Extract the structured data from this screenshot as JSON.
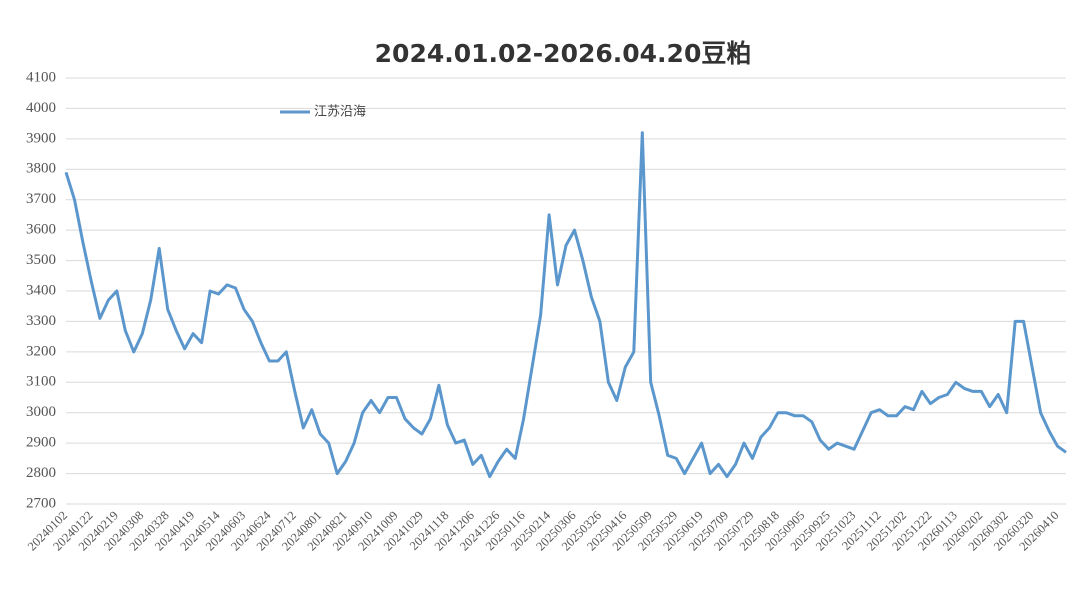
{
  "chart_data": {
    "type": "line",
    "title": "2024.01.02-2026.04.20豆粕",
    "categories": [
      "20240102",
      null,
      null,
      "20240122",
      null,
      null,
      "20240219",
      null,
      null,
      "20240308",
      null,
      null,
      "20240328",
      null,
      null,
      "20240419",
      null,
      null,
      "20240514",
      null,
      null,
      "20240603",
      null,
      null,
      "20240624",
      null,
      null,
      "20240712",
      null,
      null,
      "20240801",
      null,
      null,
      "20240821",
      null,
      null,
      "20240910",
      null,
      null,
      "20241009",
      null,
      null,
      "20241029",
      null,
      null,
      "20241118",
      null,
      null,
      "20241206",
      null,
      null,
      "20241226",
      null,
      null,
      "20250116",
      null,
      null,
      "20250214",
      null,
      null,
      "20250306",
      null,
      null,
      "20250326",
      null,
      null,
      "20250416",
      null,
      null,
      "20250509",
      null,
      null,
      "20250529",
      null,
      null,
      "20250619",
      null,
      null,
      "20250709",
      null,
      null,
      "20250729",
      null,
      null,
      "20250818",
      null,
      null,
      "20250905",
      null,
      null,
      "20250925",
      null,
      null,
      "20251023",
      null,
      null,
      "20251112",
      null,
      null,
      "20251202",
      null,
      null,
      "20251222",
      null,
      null,
      "20260113",
      null,
      null,
      "20260202",
      null,
      null,
      "20260302",
      null,
      null,
      "20260320",
      null,
      null,
      "20260410",
      null
    ],
    "series": [
      {
        "name": "江苏沿海",
        "color": "#5b97cc",
        "values": [
          3790,
          3700,
          3560,
          3430,
          3310,
          3370,
          3400,
          3270,
          3200,
          3260,
          3370,
          3540,
          3340,
          3270,
          3210,
          3260,
          3230,
          3400,
          3390,
          3420,
          3410,
          3340,
          3300,
          3230,
          3170,
          3170,
          3200,
          3070,
          2950,
          3010,
          2930,
          2900,
          2800,
          2840,
          2900,
          3000,
          3040,
          3000,
          3050,
          3050,
          2980,
          2950,
          2930,
          2980,
          3090,
          2960,
          2900,
          2910,
          2830,
          2860,
          2790,
          2840,
          2880,
          2850,
          2980,
          3150,
          3320,
          3650,
          3420,
          3550,
          3600,
          3500,
          3380,
          3300,
          3100,
          3040,
          3150,
          3200,
          3920,
          3100,
          2990,
          2860,
          2850,
          2800,
          2850,
          2900,
          2800,
          2830,
          2790,
          2830,
          2900,
          2850,
          2920,
          2950,
          3000,
          3000,
          2990,
          2990,
          2970,
          2910,
          2880,
          2900,
          2890,
          2880,
          2940,
          3000,
          3010,
          2990,
          2990,
          3020,
          3010,
          3070,
          3030,
          3050,
          3060,
          3100,
          3080,
          3070,
          3070,
          3020,
          3060,
          3000,
          3300,
          3300,
          3150,
          3000,
          2940,
          2890,
          2870
        ]
      }
    ],
    "ylim": [
      2700,
      4100
    ],
    "yticks": [
      2700,
      2800,
      2900,
      3000,
      3100,
      3200,
      3300,
      3400,
      3500,
      3600,
      3700,
      3800,
      3900,
      4000,
      4100
    ],
    "grid": true,
    "legend": "top-left"
  }
}
